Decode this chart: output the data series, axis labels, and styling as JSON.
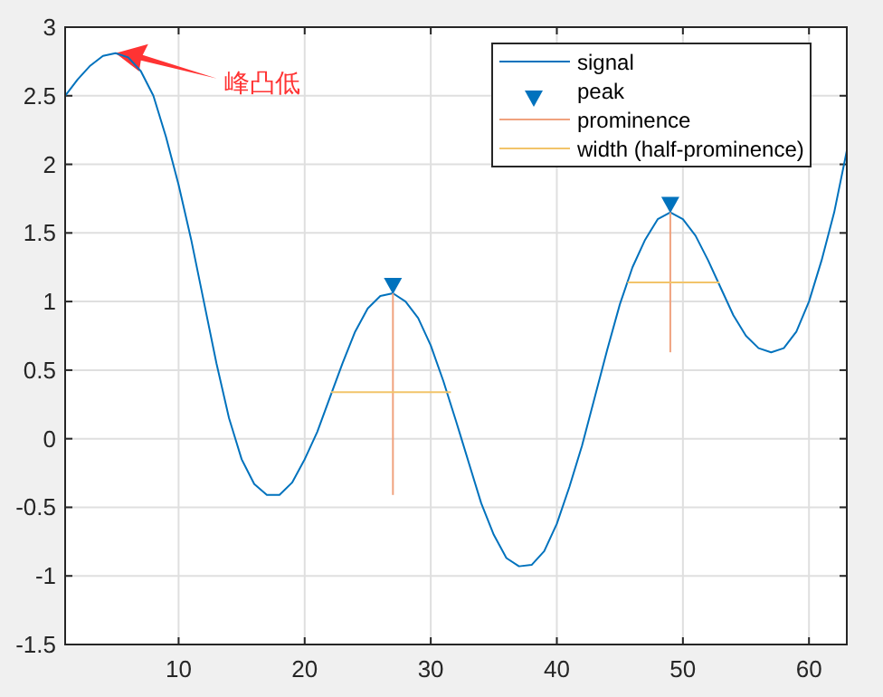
{
  "chart_data": {
    "type": "line",
    "xlim": [
      1,
      63
    ],
    "ylim": [
      -1.5,
      3
    ],
    "xticks": [
      10,
      20,
      30,
      40,
      50,
      60
    ],
    "yticks": [
      -1.5,
      -1,
      -0.5,
      0,
      0.5,
      1,
      1.5,
      2,
      2.5,
      3
    ],
    "grid": true,
    "legend": "top right",
    "annotations": [
      "峰凸低"
    ],
    "series": [
      {
        "name": "signal",
        "type": "line",
        "color": "#0072bd",
        "x": [
          1,
          2,
          3,
          4,
          5,
          6,
          7,
          8,
          9,
          10,
          11,
          12,
          13,
          14,
          15,
          16,
          17,
          18,
          19,
          20,
          21,
          22,
          23,
          24,
          25,
          26,
          27,
          28,
          29,
          30,
          31,
          32,
          33,
          34,
          35,
          36,
          37,
          38,
          39,
          40,
          41,
          42,
          43,
          44,
          45,
          46,
          47,
          48,
          49,
          50,
          51,
          52,
          53,
          54,
          55,
          56,
          57,
          58,
          59,
          60,
          61,
          62,
          63
        ],
        "values": [
          2.5,
          2.62,
          2.72,
          2.79,
          2.81,
          2.78,
          2.68,
          2.5,
          2.2,
          1.85,
          1.45,
          1.0,
          0.55,
          0.15,
          -0.15,
          -0.33,
          -0.41,
          -0.41,
          -0.32,
          -0.15,
          0.05,
          0.3,
          0.55,
          0.78,
          0.95,
          1.04,
          1.06,
          1.0,
          0.88,
          0.68,
          0.42,
          0.13,
          -0.17,
          -0.47,
          -0.7,
          -0.87,
          -0.93,
          -0.92,
          -0.82,
          -0.62,
          -0.35,
          -0.05,
          0.3,
          0.65,
          0.98,
          1.25,
          1.45,
          1.6,
          1.65,
          1.6,
          1.48,
          1.3,
          1.1,
          0.9,
          0.75,
          0.66,
          0.63,
          0.66,
          0.78,
          1.0,
          1.3,
          1.65,
          2.1
        ]
      },
      {
        "name": "peak",
        "type": "scatter",
        "marker": "triangle",
        "color": "#0072bd",
        "x": [
          27,
          49
        ],
        "values": [
          1.12,
          1.71
        ]
      },
      {
        "name": "prominence",
        "type": "line",
        "color": "#f0a27e",
        "x": [
          27,
          27
        ],
        "values": [
          1.06,
          -0.41
        ]
      },
      {
        "type": "line",
        "color": "#f0a27e",
        "x": [
          49,
          49
        ],
        "values": [
          1.65,
          0.63
        ]
      },
      {
        "name": "width (half-prominence)",
        "type": "line",
        "color": "#f2c46a",
        "x": [
          22.1,
          31.6
        ],
        "values": [
          0.34,
          0.34
        ]
      },
      {
        "type": "line",
        "color": "#f2c46a",
        "x": [
          45.6,
          52.9
        ],
        "values": [
          1.14,
          1.14
        ]
      }
    ]
  }
}
